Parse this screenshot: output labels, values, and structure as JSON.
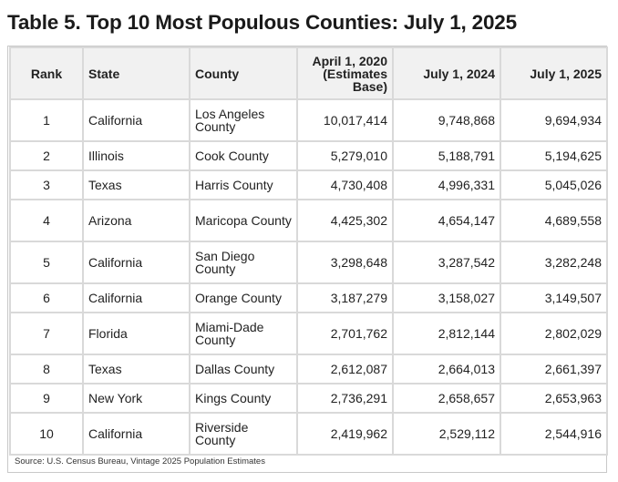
{
  "title": "Table 5. Top 10 Most Populous Counties: July 1, 2025",
  "columns": {
    "rank": "Rank",
    "state": "State",
    "county": "County",
    "base_2020": "April 1, 2020 (Estimates Base)",
    "jul_2024": "July 1, 2024",
    "jul_2025": "July 1, 2025"
  },
  "rows": [
    {
      "rank": "1",
      "state": "California",
      "county": "Los Angeles County",
      "base_2020": "10,017,414",
      "jul_2024": "9,748,868",
      "jul_2025": "9,694,934"
    },
    {
      "rank": "2",
      "state": "Illinois",
      "county": "Cook County",
      "base_2020": "5,279,010",
      "jul_2024": "5,188,791",
      "jul_2025": "5,194,625"
    },
    {
      "rank": "3",
      "state": "Texas",
      "county": "Harris County",
      "base_2020": "4,730,408",
      "jul_2024": "4,996,331",
      "jul_2025": "5,045,026"
    },
    {
      "rank": "4",
      "state": "Arizona",
      "county": "Maricopa County",
      "base_2020": "4,425,302",
      "jul_2024": "4,654,147",
      "jul_2025": "4,689,558"
    },
    {
      "rank": "5",
      "state": "California",
      "county": "San Diego County",
      "base_2020": "3,298,648",
      "jul_2024": "3,287,542",
      "jul_2025": "3,282,248"
    },
    {
      "rank": "6",
      "state": "California",
      "county": "Orange County",
      "base_2020": "3,187,279",
      "jul_2024": "3,158,027",
      "jul_2025": "3,149,507"
    },
    {
      "rank": "7",
      "state": "Florida",
      "county": "Miami-Dade County",
      "base_2020": "2,701,762",
      "jul_2024": "2,812,144",
      "jul_2025": "2,802,029"
    },
    {
      "rank": "8",
      "state": "Texas",
      "county": "Dallas County",
      "base_2020": "2,612,087",
      "jul_2024": "2,664,013",
      "jul_2025": "2,661,397"
    },
    {
      "rank": "9",
      "state": "New York",
      "county": "Kings County",
      "base_2020": "2,736,291",
      "jul_2024": "2,658,657",
      "jul_2025": "2,653,963"
    },
    {
      "rank": "10",
      "state": "California",
      "county": "Riverside County",
      "base_2020": "2,419,962",
      "jul_2024": "2,529,112",
      "jul_2025": "2,544,916"
    }
  ],
  "source": "Source: U.S. Census Bureau, Vintage 2025 Population Estimates"
}
